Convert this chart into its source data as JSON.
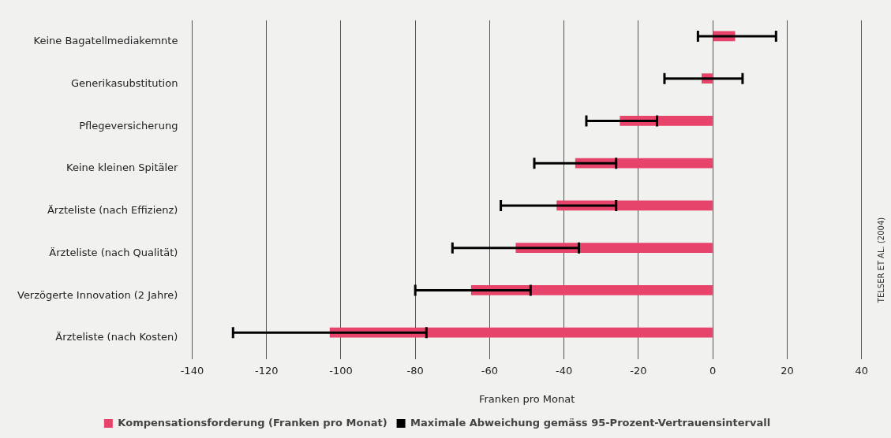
{
  "chart_data": {
    "type": "bar",
    "orientation": "horizontal",
    "xlabel": "Franken pro Monat",
    "categories": [
      "Keine Bagatellmediakemnte",
      "Generikasubstitution",
      "Pflegeversicherung",
      "Keine kleinen Spitäler",
      "Ärzteliste (nach Effizienz)",
      "Ärzteliste (nach Qualität)",
      "Verzögerte Innovation (2 Jahre)",
      "Ärzteliste (nach Kosten)"
    ],
    "series": [
      {
        "name": "Kompensationsforderung (Franken pro Monat)",
        "color": "#e8436a",
        "values": [
          6,
          -3,
          -25,
          -37,
          -42,
          -53,
          -65,
          -103
        ],
        "errors": [
          [
            -4,
            17
          ],
          [
            -13,
            8
          ],
          [
            -34,
            -15
          ],
          [
            -48,
            -26
          ],
          [
            -57,
            -26
          ],
          [
            -70,
            -36
          ],
          [
            -80,
            -49
          ],
          [
            -129,
            -77
          ]
        ]
      },
      {
        "name": "Maximale Abweichung gemäss 95-Prozent-Vertrauensintervall",
        "color": "#000000",
        "values": [
          null,
          null,
          null,
          null,
          null,
          null,
          null,
          null
        ]
      }
    ],
    "xlim": [
      -140,
      40
    ],
    "xticks": [
      -140,
      -120,
      -100,
      -80,
      -60,
      -40,
      -20,
      0,
      20,
      40
    ],
    "grid": "x",
    "legend": "bottom",
    "annotations": [
      "TELSER ET AL. (2004)"
    ]
  }
}
